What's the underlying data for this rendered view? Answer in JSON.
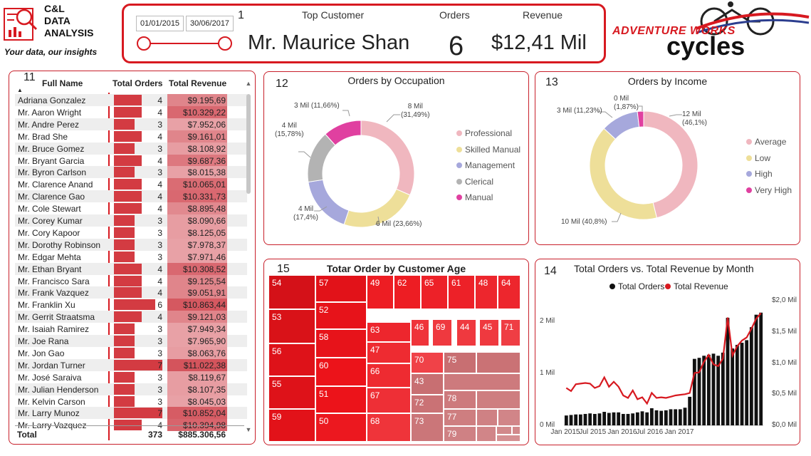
{
  "logo": {
    "line1": "C&L",
    "line2": "DATA",
    "line3": "ANALYSIS",
    "tagline": "Your data, our insights",
    "icon": "analytics-icon"
  },
  "kpi": {
    "panel_number": "1",
    "date_from": "01/01/2015",
    "date_to": "30/06/2017",
    "top_customer_label": "Top Customer",
    "top_customer_value": "Mr. Maurice Shan",
    "orders_label": "Orders",
    "orders_value": "6",
    "revenue_label": "Revenue",
    "revenue_value": "$12,41 Mil"
  },
  "brand_logo": {
    "line1": "ADVENTURE WORKS",
    "line2": "cycles",
    "icon": "cyclist-icon"
  },
  "colors": {
    "accent": "#d71920",
    "bar": "#d33b42",
    "professional": "#f0b7bf",
    "skilled_manual": "#eedf99",
    "management": "#a6a8dc",
    "clerical": "#b3b3b3",
    "manual": "#e040a0"
  },
  "table": {
    "panel_number": "11",
    "col_name": "Full Name",
    "col_orders": "Total Orders",
    "col_revenue": "Total Revenue",
    "rows": [
      {
        "name": "Adriana Gonzalez",
        "orders": 4,
        "revenue": "$9.195,69"
      },
      {
        "name": "Mr. Aaron Wright",
        "orders": 4,
        "revenue": "$10.329,22"
      },
      {
        "name": "Mr. Andre Perez",
        "orders": 3,
        "revenue": "$7.952,06"
      },
      {
        "name": "Mr. Brad She",
        "orders": 4,
        "revenue": "$9.161,01"
      },
      {
        "name": "Mr. Bruce Gomez",
        "orders": 3,
        "revenue": "$8.108,92"
      },
      {
        "name": "Mr. Bryant Garcia",
        "orders": 4,
        "revenue": "$9.687,36"
      },
      {
        "name": "Mr. Byron Carlson",
        "orders": 3,
        "revenue": "$8.015,38"
      },
      {
        "name": "Mr. Clarence Anand",
        "orders": 4,
        "revenue": "$10.065,01"
      },
      {
        "name": "Mr. Clarence Gao",
        "orders": 4,
        "revenue": "$10.331,73"
      },
      {
        "name": "Mr. Cole Stewart",
        "orders": 4,
        "revenue": "$8.895,48"
      },
      {
        "name": "Mr. Corey Kumar",
        "orders": 3,
        "revenue": "$8.090,66"
      },
      {
        "name": "Mr. Cory Kapoor",
        "orders": 3,
        "revenue": "$8.125,05"
      },
      {
        "name": "Mr. Dorothy Robinson",
        "orders": 3,
        "revenue": "$7.978,37"
      },
      {
        "name": "Mr. Edgar Mehta",
        "orders": 3,
        "revenue": "$7.971,46"
      },
      {
        "name": "Mr. Ethan Bryant",
        "orders": 4,
        "revenue": "$10.308,52"
      },
      {
        "name": "Mr. Francisco Sara",
        "orders": 4,
        "revenue": "$9.125,54"
      },
      {
        "name": "Mr. Frank Vazquez",
        "orders": 4,
        "revenue": "$9.051,91"
      },
      {
        "name": "Mr. Franklin Xu",
        "orders": 6,
        "revenue": "$10.863,44"
      },
      {
        "name": "Mr. Gerrit Straatsma",
        "orders": 4,
        "revenue": "$9.121,03"
      },
      {
        "name": "Mr. Isaiah Ramirez",
        "orders": 3,
        "revenue": "$7.949,34"
      },
      {
        "name": "Mr. Joe Rana",
        "orders": 3,
        "revenue": "$7.965,90"
      },
      {
        "name": "Mr. Jon Gao",
        "orders": 3,
        "revenue": "$8.063,76"
      },
      {
        "name": "Mr. Jordan Turner",
        "orders": 7,
        "revenue": "$11.022,38"
      },
      {
        "name": "Mr. José Saraiva",
        "orders": 3,
        "revenue": "$8.119,67"
      },
      {
        "name": "Mr. Julian Henderson",
        "orders": 3,
        "revenue": "$8.107,35"
      },
      {
        "name": "Mr. Kelvin Carson",
        "orders": 3,
        "revenue": "$8.045,03"
      },
      {
        "name": "Mr. Larry Munoz",
        "orders": 7,
        "revenue": "$10.852,04"
      },
      {
        "name": "Mr. Larry Vazquez",
        "orders": 4,
        "revenue": "$10.394,98"
      }
    ],
    "total_label": "Total",
    "total_orders": "373",
    "total_revenue": "$885.306,56"
  },
  "chart_data": [
    {
      "type": "pie",
      "panel_number": "12",
      "title": "Orders by Occupation",
      "categories": [
        "Professional",
        "Skilled Manual",
        "Management",
        "Clerical",
        "Manual"
      ],
      "values": [
        31.49,
        23.66,
        17.4,
        15.78,
        11.66
      ],
      "labels": [
        "8 Mil (31,49%)",
        "6 Mil (23,66%)",
        "4 Mil (17,4%)",
        "4 Mil (15,78%)",
        "3 Mil (11,66%)"
      ],
      "legend": "right"
    },
    {
      "type": "pie",
      "panel_number": "13",
      "title": "Orders by Income",
      "categories": [
        "Average",
        "Low",
        "High",
        "Very High"
      ],
      "values": [
        46.1,
        40.8,
        11.23,
        1.87
      ],
      "labels": [
        "12 Mil (46,1%)",
        "10 Mil (40,8%)",
        "3 Mil (11,23%)",
        "0 Mil (1,87%)"
      ],
      "legend": "right"
    },
    {
      "type": "heatmap",
      "panel_number": "15",
      "title": "Totar Order by Customer Age",
      "categories": [
        "54",
        "53",
        "56",
        "55",
        "59",
        "57",
        "52",
        "58",
        "60",
        "51",
        "50",
        "49",
        "62",
        "65",
        "61",
        "48",
        "64",
        "63",
        "46",
        "69",
        "44",
        "45",
        "71",
        "47",
        "66",
        "67",
        "68",
        "70",
        "75",
        "43",
        "72",
        "73",
        "78",
        "77",
        "79"
      ]
    },
    {
      "type": "bar",
      "panel_number": "14",
      "title": "Total Orders vs. Total Revenue by Month",
      "series": [
        {
          "name": "Total Orders",
          "axis": "left",
          "values": [
            0.19,
            0.2,
            0.21,
            0.21,
            0.22,
            0.23,
            0.22,
            0.23,
            0.26,
            0.24,
            0.25,
            0.25,
            0.22,
            0.22,
            0.23,
            0.25,
            0.27,
            0.25,
            0.33,
            0.29,
            0.28,
            0.29,
            0.31,
            0.31,
            0.31,
            0.34,
            0.55,
            1.28,
            1.3,
            1.34,
            1.36,
            1.38,
            1.34,
            1.4,
            2.07,
            1.48,
            1.55,
            1.59,
            1.64,
            1.89,
            2.13,
            2.17
          ]
        },
        {
          "name": "Total Revenue",
          "axis": "right",
          "values": [
            0.6,
            0.55,
            0.66,
            0.67,
            0.68,
            0.67,
            0.6,
            0.63,
            0.77,
            0.62,
            0.7,
            0.62,
            0.48,
            0.44,
            0.56,
            0.42,
            0.45,
            0.35,
            0.52,
            0.44,
            0.45,
            0.44,
            0.46,
            0.48,
            0.49,
            0.5,
            0.52,
            0.84,
            0.85,
            1.02,
            1.13,
            0.98,
            0.95,
            1.07,
            1.73,
            1.12,
            1.27,
            1.36,
            1.41,
            1.55,
            1.71,
            1.8
          ]
        }
      ],
      "x_ticks": [
        "Jan 2015",
        "Jul 2015",
        "Jan 2016",
        "Jul 2016",
        "Jan 2017"
      ],
      "y_left_ticks": [
        "0 Mil",
        "1 Mil",
        "2 Mil"
      ],
      "y_right_ticks": [
        "$0,0 Mil",
        "$0,5 Mil",
        "$1,0 Mil",
        "$1,5 Mil",
        "$2,0 Mil"
      ],
      "ylim_left": [
        0,
        2.4
      ],
      "ylim_right": [
        0,
        2.0
      ],
      "legend": "top"
    }
  ]
}
